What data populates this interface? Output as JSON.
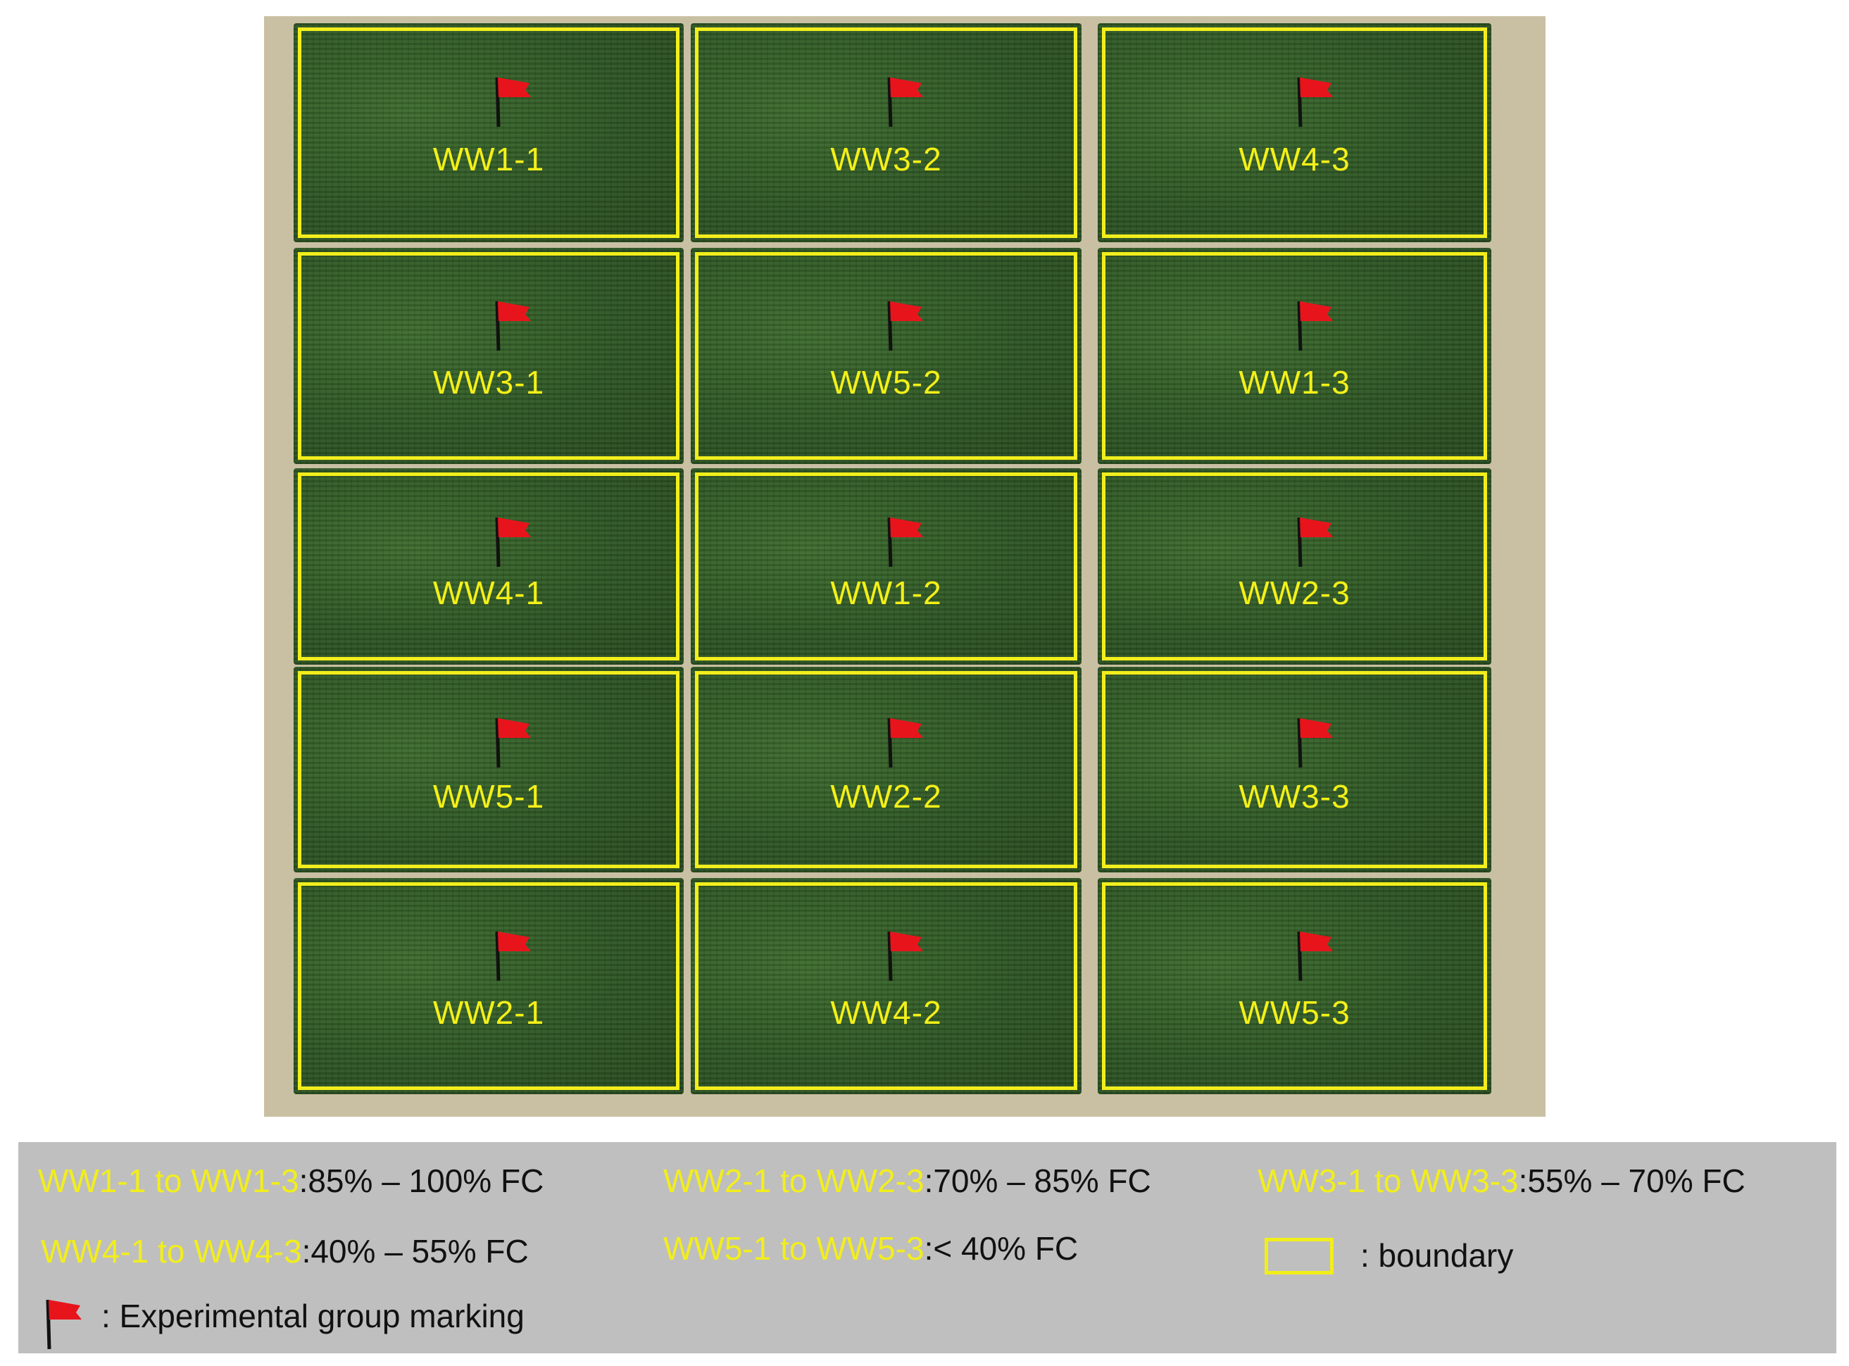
{
  "plots": [
    {
      "label": "WW1-1"
    },
    {
      "label": "WW3-2"
    },
    {
      "label": "WW4-3"
    },
    {
      "label": "WW3-1"
    },
    {
      "label": "WW5-2"
    },
    {
      "label": "WW1-3"
    },
    {
      "label": "WW4-1"
    },
    {
      "label": "WW1-2"
    },
    {
      "label": "WW2-3"
    },
    {
      "label": "WW5-1"
    },
    {
      "label": "WW2-2"
    },
    {
      "label": "WW3-3"
    },
    {
      "label": "WW2-1"
    },
    {
      "label": "WW4-2"
    },
    {
      "label": "WW5-3"
    }
  ],
  "legend": {
    "items": [
      {
        "key": "WW1-1 to WW1-3",
        "value": ":85% – 100% FC"
      },
      {
        "key": "WW2-1 to WW2-3",
        "value": ":70% – 85% FC"
      },
      {
        "key": "WW3-1 to WW3-3",
        "value": ":55% – 70% FC"
      },
      {
        "key": "WW4-1 to WW4-3",
        "value": ":40% – 55% FC"
      },
      {
        "key": "WW5-1 to WW5-3",
        "value": ":< 40% FC"
      }
    ],
    "boundary_label": ": boundary",
    "flag_label": ": Experimental group marking"
  },
  "colors": {
    "boundary": "#f2ee1c",
    "label_text": "#f4f018",
    "flag": "#e8141c",
    "legend_background": "#bfbfbf"
  }
}
